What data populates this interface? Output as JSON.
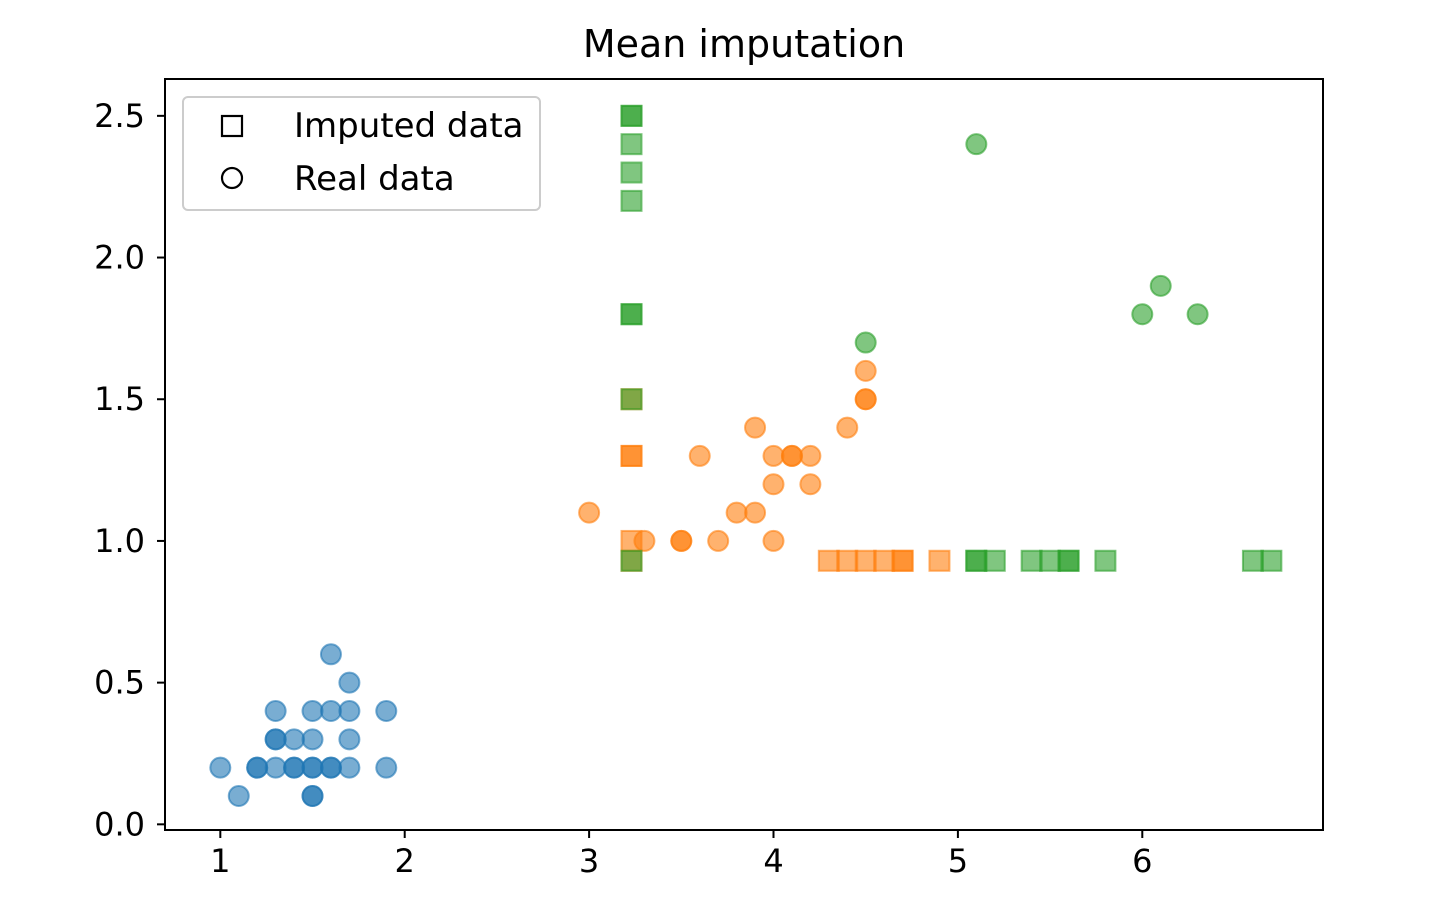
{
  "chart_data": {
    "type": "scatter",
    "title": "Mean imputation",
    "xlabel": "",
    "ylabel": "",
    "xlim": [
      0.7,
      6.98
    ],
    "ylim": [
      -0.02,
      2.63
    ],
    "xticks": [
      1,
      2,
      3,
      4,
      5,
      6
    ],
    "yticks": [
      0.0,
      0.5,
      1.0,
      1.5,
      2.0,
      2.5
    ],
    "x_tick_labels": [
      "1",
      "2",
      "3",
      "4",
      "5",
      "6"
    ],
    "y_tick_labels": [
      "0.0",
      "0.5",
      "1.0",
      "1.5",
      "2.0",
      "2.5"
    ],
    "grid": false,
    "legend": {
      "position": "upper-left",
      "entries": [
        {
          "label": "Imputed data",
          "marker": "square"
        },
        {
          "label": "Real data",
          "marker": "circle"
        }
      ]
    },
    "series": [
      {
        "marker": "circle",
        "color": "#1f77b4",
        "points": [
          [
            1.0,
            0.2
          ],
          [
            1.1,
            0.1
          ],
          [
            1.2,
            0.2
          ],
          [
            1.2,
            0.2
          ],
          [
            1.3,
            0.2
          ],
          [
            1.3,
            0.3
          ],
          [
            1.3,
            0.3
          ],
          [
            1.3,
            0.4
          ],
          [
            1.4,
            0.2
          ],
          [
            1.4,
            0.2
          ],
          [
            1.4,
            0.3
          ],
          [
            1.5,
            0.1
          ],
          [
            1.5,
            0.1
          ],
          [
            1.5,
            0.2
          ],
          [
            1.5,
            0.2
          ],
          [
            1.5,
            0.3
          ],
          [
            1.5,
            0.4
          ],
          [
            1.6,
            0.2
          ],
          [
            1.6,
            0.2
          ],
          [
            1.6,
            0.4
          ],
          [
            1.6,
            0.6
          ],
          [
            1.7,
            0.2
          ],
          [
            1.7,
            0.3
          ],
          [
            1.7,
            0.4
          ],
          [
            1.7,
            0.5
          ],
          [
            1.9,
            0.2
          ],
          [
            1.9,
            0.4
          ]
        ]
      },
      {
        "marker": "circle",
        "color": "#ff7f0e",
        "points": [
          [
            3.0,
            1.1
          ],
          [
            3.3,
            1.0
          ],
          [
            3.5,
            1.0
          ],
          [
            3.5,
            1.0
          ],
          [
            3.6,
            1.3
          ],
          [
            3.7,
            1.0
          ],
          [
            3.8,
            1.1
          ],
          [
            3.9,
            1.1
          ],
          [
            3.9,
            1.4
          ],
          [
            4.0,
            1.0
          ],
          [
            4.0,
            1.2
          ],
          [
            4.0,
            1.3
          ],
          [
            4.1,
            1.3
          ],
          [
            4.1,
            1.3
          ],
          [
            4.2,
            1.2
          ],
          [
            4.2,
            1.3
          ],
          [
            4.4,
            1.4
          ],
          [
            4.5,
            1.5
          ],
          [
            4.5,
            1.5
          ],
          [
            4.5,
            1.6
          ]
        ]
      },
      {
        "marker": "circle",
        "color": "#2ca02c",
        "points": [
          [
            4.5,
            1.7
          ],
          [
            5.1,
            2.4
          ],
          [
            6.0,
            1.8
          ],
          [
            6.1,
            1.9
          ],
          [
            6.3,
            1.8
          ]
        ]
      },
      {
        "marker": "square",
        "color": "#ff7f0e",
        "points": [
          [
            3.23,
            1.3
          ],
          [
            3.23,
            1.3
          ],
          [
            3.23,
            1.5
          ],
          [
            3.23,
            1.0
          ],
          [
            3.23,
            0.93
          ],
          [
            4.3,
            0.93
          ],
          [
            4.4,
            0.93
          ],
          [
            4.5,
            0.93
          ],
          [
            4.6,
            0.93
          ],
          [
            4.7,
            0.93
          ],
          [
            4.7,
            0.93
          ],
          [
            4.9,
            0.93
          ]
        ]
      },
      {
        "marker": "square",
        "color": "#2ca02c",
        "points": [
          [
            3.23,
            2.5
          ],
          [
            3.23,
            2.5
          ],
          [
            3.23,
            2.4
          ],
          [
            3.23,
            2.3
          ],
          [
            3.23,
            2.2
          ],
          [
            3.23,
            1.8
          ],
          [
            3.23,
            1.8
          ],
          [
            3.23,
            1.5
          ],
          [
            3.23,
            0.93
          ],
          [
            5.1,
            0.93
          ],
          [
            5.1,
            0.93
          ],
          [
            5.2,
            0.93
          ],
          [
            5.4,
            0.93
          ],
          [
            5.5,
            0.93
          ],
          [
            5.6,
            0.93
          ],
          [
            5.6,
            0.93
          ],
          [
            5.8,
            0.93
          ],
          [
            6.6,
            0.93
          ],
          [
            6.7,
            0.93
          ]
        ]
      }
    ]
  }
}
